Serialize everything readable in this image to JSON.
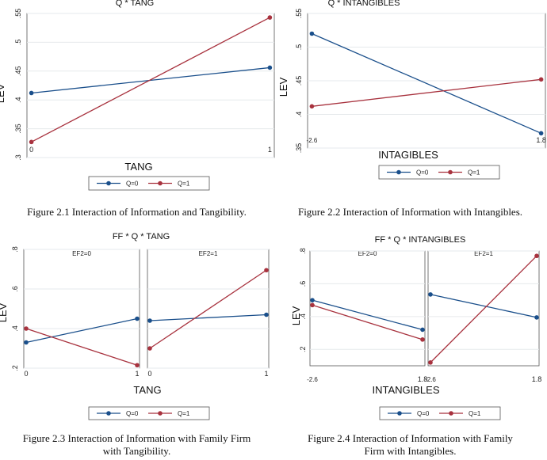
{
  "colors": {
    "q0": "#1a4f8b",
    "q1": "#a8323e",
    "grid": "#e6eaec"
  },
  "captions": {
    "fig21": "Figure 2.1 Interaction of Information and Tangibility.",
    "fig22": "Figure 2.2 Interaction of Information with Intangibles.",
    "fig23_line1": "Figure 2.3 Interaction of Information with Family Firm",
    "fig23_line2": "with Tangibility.",
    "fig24_line1": "Figure 2.4 Interaction of Information with Family",
    "fig24_line2": "Firm with Intangibles."
  },
  "chart_data": [
    {
      "type": "line",
      "title": "Q * TANG",
      "xlabel": "TANG",
      "ylabel": "LEV",
      "ylim": [
        0.3,
        0.55
      ],
      "yticks": [
        "0.3",
        "0.35",
        "0.4",
        "0.45",
        "0.5",
        "0.55"
      ],
      "yticklabels": [
        ".3",
        ".35",
        ".4",
        ".45",
        ".5",
        ".55"
      ],
      "panels": [
        {
          "label": "",
          "x": [
            "0",
            "1"
          ],
          "series": [
            {
              "name": "Q=0",
              "values": [
                0.412,
                0.456
              ]
            },
            {
              "name": "Q=1",
              "values": [
                0.327,
                0.543
              ]
            }
          ]
        }
      ],
      "legend": [
        "Q=0",
        "Q=1"
      ],
      "grid": true
    },
    {
      "type": "line",
      "title": "Q * INTANGIBLES",
      "xlabel": "INTAGIBLES",
      "ylabel": "LEV",
      "ylim": [
        0.35,
        0.55
      ],
      "yticks": [
        "0.35",
        "0.4",
        "0.45",
        "0.5",
        "0.55"
      ],
      "yticklabels": [
        ".35",
        ".4",
        ".45",
        ".5",
        ".55"
      ],
      "panels": [
        {
          "label": "",
          "x": [
            "-2.6",
            "1.8"
          ],
          "series": [
            {
              "name": "Q=0",
              "values": [
                0.52,
                0.372
              ]
            },
            {
              "name": "Q=1",
              "values": [
                0.412,
                0.452
              ]
            }
          ]
        }
      ],
      "legend": [
        "Q=0",
        "Q=1"
      ],
      "grid": true
    },
    {
      "type": "line",
      "title": "FF * Q * TANG",
      "xlabel": "TANG",
      "ylabel": "LEV",
      "ylim": [
        0.2,
        0.8
      ],
      "yticks": [
        "0.2",
        "0.4",
        "0.6",
        "0.8"
      ],
      "yticklabels": [
        ".2",
        ".4",
        ".6",
        ".8"
      ],
      "panels": [
        {
          "label": "EF2=0",
          "x": [
            "0",
            "1"
          ],
          "series": [
            {
              "name": "Q=0",
              "values": [
                0.33,
                0.45
              ]
            },
            {
              "name": "Q=1",
              "values": [
                0.4,
                0.215
              ]
            }
          ]
        },
        {
          "label": "EF2=1",
          "x": [
            "0",
            "1"
          ],
          "series": [
            {
              "name": "Q=0",
              "values": [
                0.44,
                0.47
              ]
            },
            {
              "name": "Q=1",
              "values": [
                0.3,
                0.695
              ]
            }
          ]
        }
      ],
      "legend": [
        "Q=0",
        "Q=1"
      ],
      "grid": true
    },
    {
      "type": "line",
      "title": "FF  * Q * INTANGIBLES",
      "xlabel": "INTANGIBLES",
      "ylabel": "LEV",
      "ylim": [
        0.1,
        0.8
      ],
      "yticks": [
        "0.2",
        "0.4",
        "0.6",
        "0.8"
      ],
      "yticklabels": [
        ".2",
        ".4",
        ".6",
        ".8"
      ],
      "panels": [
        {
          "label": "EF2=0",
          "x": [
            "-2.6",
            "1.8"
          ],
          "series": [
            {
              "name": "Q=0",
              "values": [
                0.5,
                0.32
              ]
            },
            {
              "name": "Q=1",
              "values": [
                0.47,
                0.26
              ]
            }
          ]
        },
        {
          "label": "EF2=1",
          "x": [
            "-2.6",
            "1.8"
          ],
          "series": [
            {
              "name": "Q=0",
              "values": [
                0.535,
                0.395
              ]
            },
            {
              "name": "Q=1",
              "values": [
                0.12,
                0.77
              ]
            }
          ]
        }
      ],
      "legend": [
        "Q=0",
        "Q=1"
      ],
      "grid": true
    }
  ]
}
